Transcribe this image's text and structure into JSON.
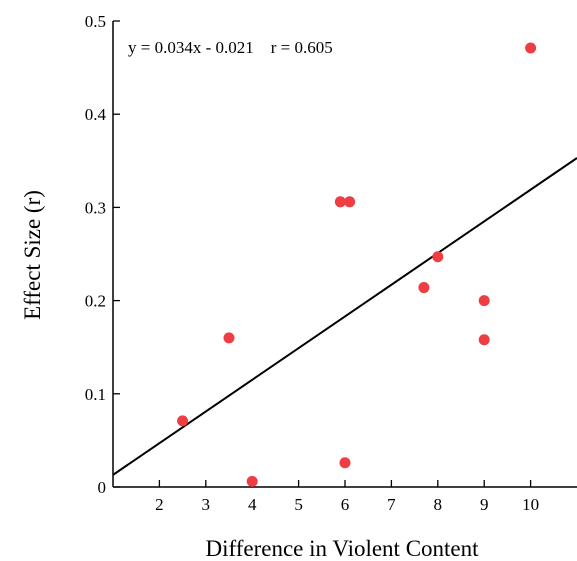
{
  "chart_data": {
    "type": "scatter",
    "title": "",
    "xlabel": "Difference in Violent Content",
    "ylabel": "Effect Size (r)",
    "annotation": "y = 0.034x - 0.021    r = 0.605",
    "xlim": [
      1,
      11
    ],
    "ylim": [
      0,
      0.5
    ],
    "x_ticks": [
      2,
      3,
      4,
      5,
      6,
      7,
      8,
      9,
      10
    ],
    "y_ticks": [
      {
        "value": 0,
        "label": "0"
      },
      {
        "value": 0.1,
        "label": "0.1"
      },
      {
        "value": 0.2,
        "label": "0.2"
      },
      {
        "value": 0.3,
        "label": "0.3"
      },
      {
        "value": 0.4,
        "label": "0.4"
      },
      {
        "value": 0.5,
        "label": "0.5"
      }
    ],
    "grid": false,
    "marker_color": "#ee3e44",
    "line_color": "#000000",
    "series": [
      {
        "points": [
          {
            "x": 2.5,
            "y": 0.071
          },
          {
            "x": 3.5,
            "y": 0.16
          },
          {
            "x": 4.0,
            "y": 0.006
          },
          {
            "x": 5.9,
            "y": 0.306
          },
          {
            "x": 6.1,
            "y": 0.306
          },
          {
            "x": 6.0,
            "y": 0.026
          },
          {
            "x": 7.7,
            "y": 0.214
          },
          {
            "x": 8.0,
            "y": 0.247
          },
          {
            "x": 9.0,
            "y": 0.2
          },
          {
            "x": 9.0,
            "y": 0.158
          },
          {
            "x": 10.0,
            "y": 0.471
          }
        ]
      }
    ],
    "regression": {
      "slope": 0.034,
      "intercept": -0.021
    }
  }
}
